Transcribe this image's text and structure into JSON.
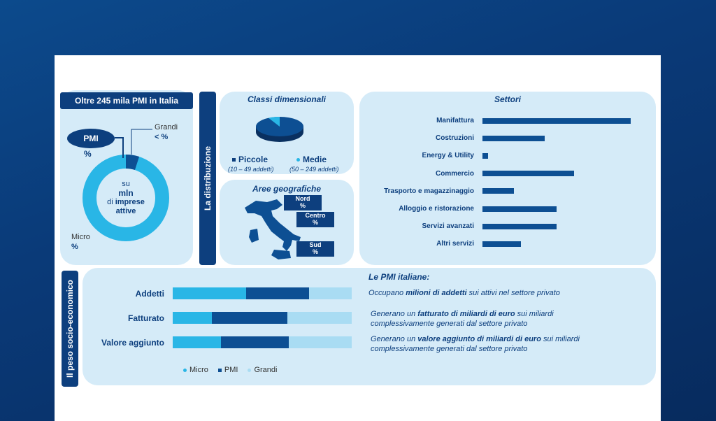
{
  "left_panel": {
    "title": "Oltre 245 mila PMI in Italia",
    "pmi_badge": "PMI",
    "pmi_pct": "%",
    "grandi_label": "Grandi",
    "grandi_pct": "< %",
    "center_line1": "su",
    "center_line2": "mln",
    "center_line3": "di",
    "center_line4": "imprese",
    "center_line5": "attive",
    "micro_label": "Micro",
    "micro_pct": "%"
  },
  "distribuzione_label": "La distribuzione",
  "classi": {
    "title": "Classi dimensionali",
    "piccole_label": "Piccole",
    "piccole_range": "(10 – 49 addetti)",
    "medie_label": "Medie",
    "medie_range": "(50 – 249 addetti)"
  },
  "aree": {
    "title": "Aree geografiche",
    "nord": "Nord",
    "nord_pct": "%",
    "centro": "Centro",
    "centro_pct": "%",
    "sud": "Sud",
    "sud_pct": "%"
  },
  "settori": {
    "title": "Settori",
    "items": [
      {
        "label": "Manifattura",
        "value": 1.0
      },
      {
        "label": "Costruzioni",
        "value": 0.42
      },
      {
        "label": "Energy & Utility",
        "value": 0.04
      },
      {
        "label": "Commercio",
        "value": 0.62
      },
      {
        "label": "Trasporto e magazzinaggio",
        "value": 0.21
      },
      {
        "label": "Alloggio e ristorazione",
        "value": 0.5
      },
      {
        "label": "Servizi avanzati",
        "value": 0.5
      },
      {
        "label": "Altri servizi",
        "value": 0.26
      }
    ]
  },
  "socio": {
    "side_label": "Il peso socio-economico",
    "rows": [
      {
        "label": "Addetti",
        "micro": 0.41,
        "pmi": 0.35,
        "grandi": 0.24
      },
      {
        "label": "Fatturato",
        "micro": 0.22,
        "pmi": 0.42,
        "grandi": 0.36
      },
      {
        "label": "Valore aggiunto",
        "micro": 0.27,
        "pmi": 0.38,
        "grandi": 0.35
      }
    ],
    "legend": {
      "micro": "Micro",
      "pmi": "PMI",
      "grandi": "Grandi"
    },
    "heading": "Le PMI italiane:",
    "line1_pre": "Occupano ",
    "line1_bold": "milioni di addetti",
    "line1_post": " sui attivi nel settore privato",
    "line2_pre": "Generano un ",
    "line2_bold": "fatturato di miliardi di euro",
    "line2_post": " sui miliardi complessivamente generati dal settore privato",
    "line3_pre": "Generano un ",
    "line3_bold": "valore aggiunto di miliardi di euro",
    "line3_post": " sui miliardi complessivamente generati dal settore privato"
  },
  "colors": {
    "dark_blue": "#0d3f7e",
    "mid_blue": "#0d4f93",
    "cyan": "#29b6e6",
    "light_cyan": "#a9dcf3",
    "panel_bg": "#d5ebf8"
  }
}
